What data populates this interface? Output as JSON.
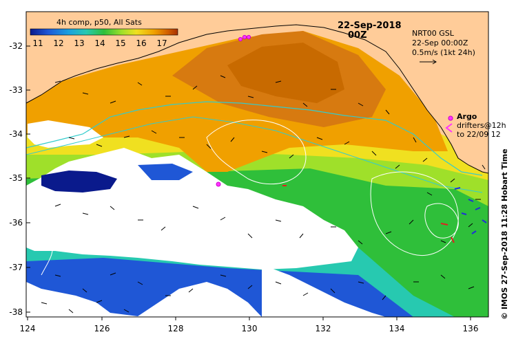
{
  "colorbar": {
    "title": "4h comp, p50, All Sats",
    "ticks": [
      "11",
      "12",
      "13",
      "14",
      "15",
      "16",
      "17"
    ],
    "colors": [
      "#0a1a8c",
      "#1f57d6",
      "#1aa0e0",
      "#27c9b0",
      "#2fbf3a",
      "#9fe02a",
      "#f0e020",
      "#f0a000",
      "#d26000",
      "#a83000"
    ]
  },
  "date": "22-Sep-2018",
  "time": "00Z",
  "current_legend": {
    "line1": "NRT00 GSL",
    "line2": "22-Sep 00:00Z",
    "line3": "0.5m/s (1kt 24h)"
  },
  "argo_legend": {
    "label": "Argo",
    "drifters_line1": "drifters@12h",
    "drifters_line2": "to 22/09 12"
  },
  "credit": "© IMOS 27-Sep-2018 11:28 Hobart Time",
  "axes": {
    "y_ticks": [
      "-32",
      "-33",
      "-34",
      "-35",
      "-36",
      "-37",
      "-38"
    ],
    "x_ticks": [
      "124",
      "126",
      "128",
      "130",
      "132",
      "134",
      "136"
    ]
  },
  "colors": {
    "land": "#ffcc99",
    "cloud": "#ffffff",
    "argo": "#ff33ff",
    "drifter": "#e02020",
    "contour": "#ffffff",
    "bathymetry": "#33cccc"
  }
}
